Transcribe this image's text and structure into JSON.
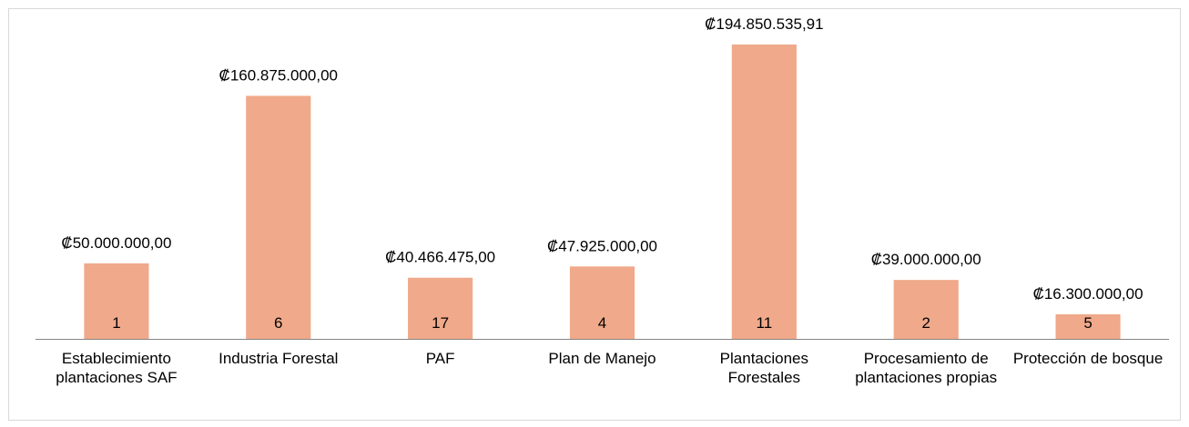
{
  "chart_data": {
    "type": "bar",
    "categories": [
      "Establecimiento plantaciones SAF",
      "Industria Forestal",
      "PAF",
      "Plan de Manejo",
      "Plantaciones Forestales",
      "Procesamiento de plantaciones propias",
      "Protección de bosque"
    ],
    "values": [
      50000000,
      160875000,
      40466475,
      47925000,
      194850535.91,
      39000000,
      16300000
    ],
    "value_labels": [
      "₡50.000.000,00",
      "₡160.875.000,00",
      "₡40.466.475,00",
      "₡47.925.000,00",
      "₡194.850.535,91",
      "₡39.000.000,00",
      "₡16.300.000,00"
    ],
    "counts": [
      1,
      6,
      17,
      4,
      11,
      2,
      5
    ],
    "color": "#f0a98a"
  }
}
